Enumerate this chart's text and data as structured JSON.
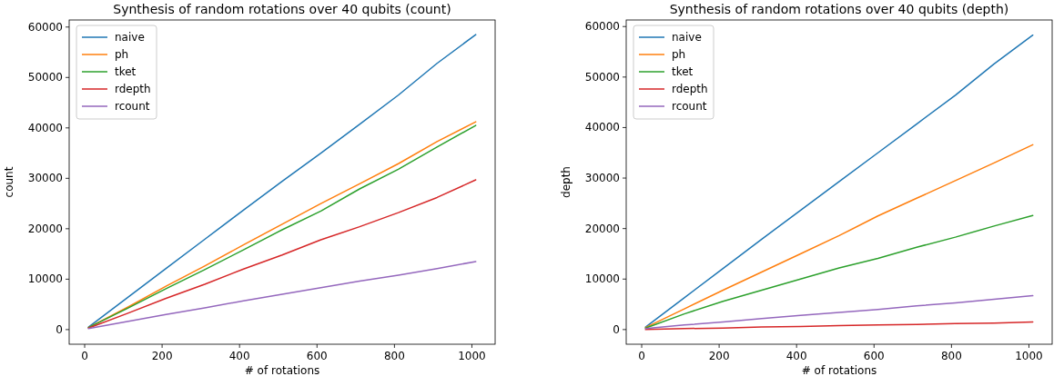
{
  "chart_data": [
    {
      "type": "line",
      "title": "Synthesis of random rotations over 40 qubits (count)",
      "xlabel": "# of rotations",
      "ylabel": "count",
      "x": [
        10,
        110,
        210,
        310,
        410,
        510,
        610,
        710,
        810,
        910,
        1010
      ],
      "xlim": [
        -40,
        1060
      ],
      "xticks": [
        0,
        200,
        400,
        600,
        800,
        1000
      ],
      "ylim": [
        -2900,
        61400
      ],
      "yticks": [
        0,
        10000,
        20000,
        30000,
        40000,
        50000,
        60000
      ],
      "legend": "top left",
      "grid": false,
      "series": [
        {
          "name": "naive",
          "color": "#1f77b4",
          "values": [
            500,
            6300,
            12100,
            17900,
            23700,
            29400,
            35000,
            40700,
            46500,
            52800,
            58500
          ]
        },
        {
          "name": "ph",
          "color": "#ff7f0e",
          "values": [
            400,
            4400,
            8600,
            12600,
            16800,
            20900,
            25000,
            28900,
            32900,
            37300,
            41200
          ]
        },
        {
          "name": "tket",
          "color": "#2ca02c",
          "values": [
            400,
            4200,
            8100,
            11900,
            15800,
            19800,
            23500,
            27900,
            31800,
            36200,
            40500
          ]
        },
        {
          "name": "rdepth",
          "color": "#d62728",
          "values": [
            300,
            3200,
            6200,
            9000,
            12000,
            14800,
            17800,
            20400,
            23200,
            26200,
            29700
          ]
        },
        {
          "name": "rcount",
          "color": "#9467bd",
          "values": [
            200,
            1600,
            3000,
            4300,
            5700,
            7000,
            8300,
            9600,
            10800,
            12100,
            13500
          ]
        }
      ]
    },
    {
      "type": "line",
      "title": "Synthesis of random rotations over 40 qubits (depth)",
      "xlabel": "# of rotations",
      "ylabel": "depth",
      "x": [
        10,
        110,
        210,
        310,
        410,
        510,
        610,
        710,
        810,
        910,
        1010
      ],
      "xlim": [
        -40,
        1060
      ],
      "xticks": [
        0,
        200,
        400,
        600,
        800,
        1000
      ],
      "ylim": [
        -2900,
        61300
      ],
      "yticks": [
        0,
        10000,
        20000,
        30000,
        40000,
        50000,
        60000
      ],
      "legend": "top left",
      "grid": false,
      "series": [
        {
          "name": "naive",
          "color": "#1f77b4",
          "values": [
            500,
            6300,
            12100,
            17900,
            23600,
            29300,
            35000,
            40700,
            46400,
            52600,
            58300
          ]
        },
        {
          "name": "ph",
          "color": "#ff7f0e",
          "values": [
            400,
            4100,
            7800,
            11400,
            15000,
            18600,
            22500,
            26000,
            29500,
            33000,
            36600
          ]
        },
        {
          "name": "tket",
          "color": "#2ca02c",
          "values": [
            300,
            3100,
            5600,
            7800,
            10000,
            12200,
            14100,
            16300,
            18300,
            20500,
            22600
          ]
        },
        {
          "name": "rdepth",
          "color": "#d62728",
          "values": [
            0,
            200,
            300,
            500,
            600,
            800,
            900,
            1000,
            1200,
            1300,
            1500
          ]
        },
        {
          "name": "rcount",
          "color": "#9467bd",
          "values": [
            200,
            900,
            1500,
            2200,
            2800,
            3400,
            4000,
            4700,
            5300,
            6000,
            6700
          ]
        }
      ]
    }
  ]
}
